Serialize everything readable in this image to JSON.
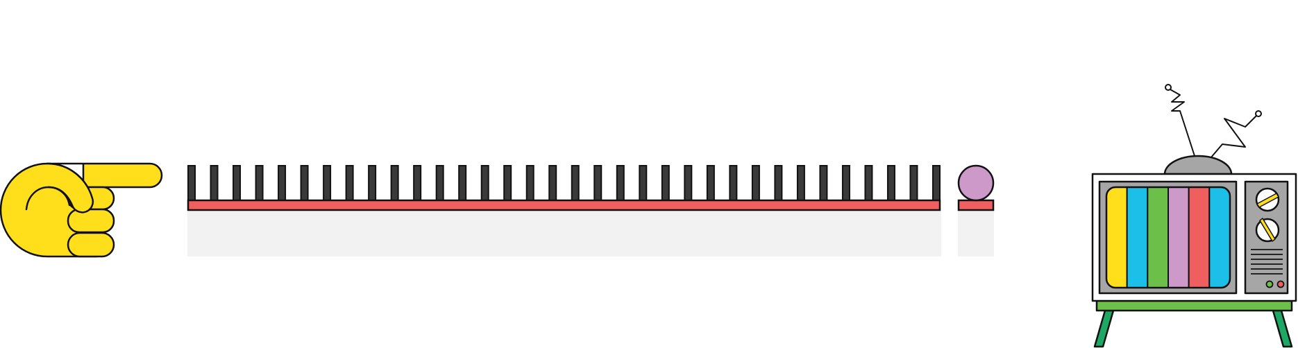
{
  "colors": {
    "outline": "#111111",
    "hand": "#ffdf1b",
    "comb_bar": "#ef5f5f",
    "comb_tooth": "#3a3a3a",
    "shadow": "#f2f2f2",
    "ball": "#cc99c9",
    "tv_cabinet": "#ffffff",
    "tv_panel": "#a6a6a6",
    "tv_dome": "#a6a6a6",
    "tv_stand": "#6cc04a",
    "tv_legs": "#1ea866",
    "knob_stripe": "#ffdf1b",
    "led_green": "#6cc04a",
    "led_red": "#ef5f5f"
  },
  "icons": [
    "pointing-hand-icon",
    "comb-icon",
    "ball-icon",
    "television-icon",
    "antenna-icon",
    "dial-icon"
  ],
  "comb": {
    "tooth_count": 34
  },
  "tv": {
    "color_bars": [
      "#ffdf1b",
      "#1cbfe8",
      "#6cc04a",
      "#cc99c9",
      "#ef5f5f",
      "#1cbfe8"
    ],
    "knob_count": 2,
    "speaker_lines": 6
  }
}
